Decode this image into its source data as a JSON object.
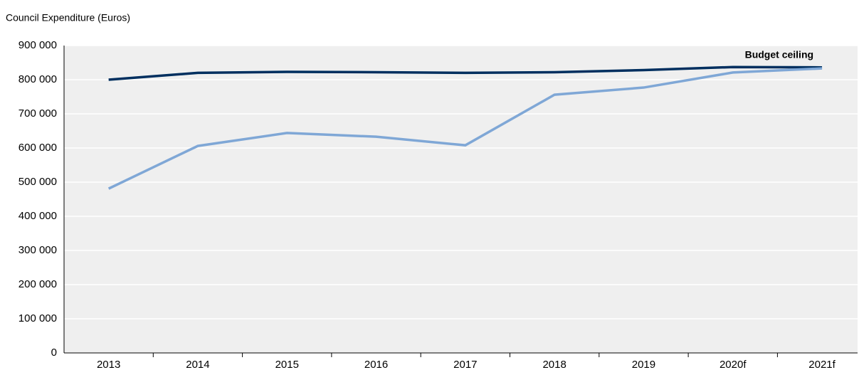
{
  "chart_data": {
    "type": "line",
    "title": "Council Expenditure (Euros)",
    "categories": [
      "2013",
      "2014",
      "2015",
      "2016",
      "2017",
      "2018",
      "2019",
      "2020f",
      "2021f"
    ],
    "series": [
      {
        "name": "Budget ceiling",
        "color": "#002f5f",
        "values": [
          800000,
          820000,
          823000,
          822000,
          820000,
          822000,
          828000,
          837000,
          836000
        ]
      },
      {
        "color": "#7fa7d6",
        "values": [
          481000,
          606000,
          644000,
          633000,
          608000,
          756000,
          777000,
          821000,
          833000
        ]
      }
    ],
    "ylim": [
      0,
      900000
    ],
    "yticks": [
      0,
      {
        "value": 100000,
        "label": "100 000"
      },
      {
        "value": 200000,
        "label": "200 000"
      },
      {
        "value": 300000,
        "label": "300 000"
      },
      {
        "value": 400000,
        "label": "400 000"
      },
      {
        "value": 500000,
        "label": "500 000"
      },
      {
        "value": 600000,
        "label": "600 000"
      },
      {
        "value": 700000,
        "label": "700 000"
      },
      {
        "value": 800000,
        "label": "800 000"
      },
      {
        "value": 900000,
        "label": "900 000"
      }
    ],
    "grid": true
  }
}
